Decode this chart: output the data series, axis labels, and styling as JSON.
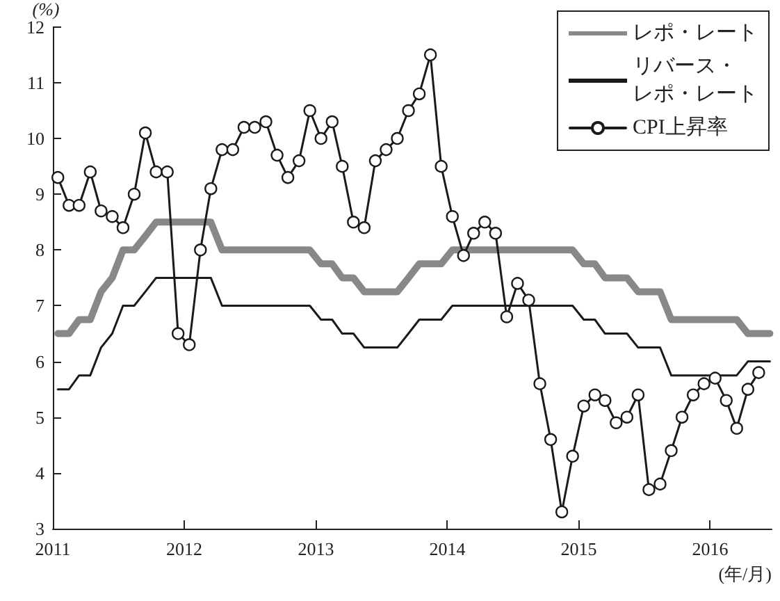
{
  "chart_data": {
    "type": "line",
    "ylabel": "(%)",
    "xlabel": "(年/月)",
    "x": [
      "2011-01-15",
      "2011-02-15",
      "2011-03-15",
      "2011-04-15",
      "2011-05-15",
      "2011-06-15",
      "2011-07-15",
      "2011-08-15",
      "2011-09-15",
      "2011-10-15",
      "2011-11-15",
      "2011-12-15",
      "2012-01-15",
      "2012-02-15",
      "2012-03-15",
      "2012-04-15",
      "2012-05-15",
      "2012-06-15",
      "2012-07-15",
      "2012-08-15",
      "2012-09-15",
      "2012-10-15",
      "2012-11-15",
      "2012-12-15",
      "2013-01-15",
      "2013-02-15",
      "2013-03-15",
      "2013-04-15",
      "2013-05-15",
      "2013-06-15",
      "2013-07-15",
      "2013-08-15",
      "2013-09-15",
      "2013-10-15",
      "2013-11-15",
      "2013-12-15",
      "2014-01-15",
      "2014-02-15",
      "2014-03-15",
      "2014-04-15",
      "2014-05-15",
      "2014-06-15",
      "2014-07-15",
      "2014-08-15",
      "2014-09-15",
      "2014-10-15",
      "2014-11-15",
      "2014-12-15",
      "2015-01-15",
      "2015-02-15",
      "2015-03-15",
      "2015-04-15",
      "2015-05-15",
      "2015-06-15",
      "2015-07-15",
      "2015-08-15",
      "2015-09-15",
      "2015-10-15",
      "2015-11-15",
      "2015-12-15",
      "2016-01-15",
      "2016-02-15",
      "2016-03-15",
      "2016-04-15",
      "2016-05-15",
      "2016-06-15"
    ],
    "series": [
      {
        "name": "レポ・レート",
        "color": "#888888",
        "marker": "none",
        "values": [
          6.5,
          6.5,
          6.75,
          6.75,
          7.25,
          7.5,
          8.0,
          8.0,
          8.25,
          8.5,
          8.5,
          8.5,
          8.5,
          8.5,
          8.5,
          8.0,
          8.0,
          8.0,
          8.0,
          8.0,
          8.0,
          8.0,
          8.0,
          8.0,
          7.75,
          7.75,
          7.5,
          7.5,
          7.25,
          7.25,
          7.25,
          7.25,
          7.5,
          7.75,
          7.75,
          7.75,
          8.0,
          8.0,
          8.0,
          8.0,
          8.0,
          8.0,
          8.0,
          8.0,
          8.0,
          8.0,
          8.0,
          8.0,
          7.75,
          7.75,
          7.5,
          7.5,
          7.5,
          7.25,
          7.25,
          7.25,
          6.75,
          6.75,
          6.75,
          6.75,
          6.75,
          6.75,
          6.75,
          6.5,
          6.5,
          6.5
        ]
      },
      {
        "name": "リバース・レポ・レート",
        "color": "#1a1a1a",
        "marker": "none",
        "values": [
          5.5,
          5.5,
          5.75,
          5.75,
          6.25,
          6.5,
          7.0,
          7.0,
          7.25,
          7.5,
          7.5,
          7.5,
          7.5,
          7.5,
          7.5,
          7.0,
          7.0,
          7.0,
          7.0,
          7.0,
          7.0,
          7.0,
          7.0,
          7.0,
          6.75,
          6.75,
          6.5,
          6.5,
          6.25,
          6.25,
          6.25,
          6.25,
          6.5,
          6.75,
          6.75,
          6.75,
          7.0,
          7.0,
          7.0,
          7.0,
          7.0,
          7.0,
          7.0,
          7.0,
          7.0,
          7.0,
          7.0,
          7.0,
          6.75,
          6.75,
          6.5,
          6.5,
          6.5,
          6.25,
          6.25,
          6.25,
          5.75,
          5.75,
          5.75,
          5.75,
          5.75,
          5.75,
          5.75,
          6.0,
          6.0,
          6.0
        ]
      },
      {
        "name": "CPI上昇率",
        "color": "#1a1a1a",
        "marker": "circle",
        "values": [
          9.3,
          8.8,
          8.8,
          9.4,
          8.7,
          8.6,
          8.4,
          9.0,
          10.1,
          9.4,
          9.4,
          6.5,
          6.3,
          8.0,
          9.1,
          9.8,
          9.8,
          10.2,
          10.2,
          10.3,
          9.7,
          9.3,
          9.6,
          10.5,
          10.0,
          10.3,
          9.5,
          8.5,
          8.4,
          9.6,
          9.8,
          10.0,
          10.5,
          10.8,
          11.5,
          9.5,
          8.6,
          7.9,
          8.3,
          8.5,
          8.3,
          6.8,
          7.4,
          7.1,
          5.6,
          4.6,
          3.3,
          4.3,
          5.2,
          5.4,
          5.3,
          4.9,
          5.0,
          5.4,
          3.7,
          3.8,
          4.4,
          5.0,
          5.4,
          5.6,
          5.7,
          5.3,
          4.8,
          5.5,
          5.8,
          null
        ]
      }
    ],
    "xlim": [
      "2011-01-01",
      "2016-06-20"
    ],
    "xticks": [
      "2011",
      "2012",
      "2013",
      "2014",
      "2015",
      "2016"
    ],
    "ylim": [
      3,
      12
    ],
    "yticks": [
      3,
      4,
      5,
      6,
      7,
      8,
      9,
      10,
      11,
      12
    ],
    "grid": false,
    "legend": "top right"
  }
}
